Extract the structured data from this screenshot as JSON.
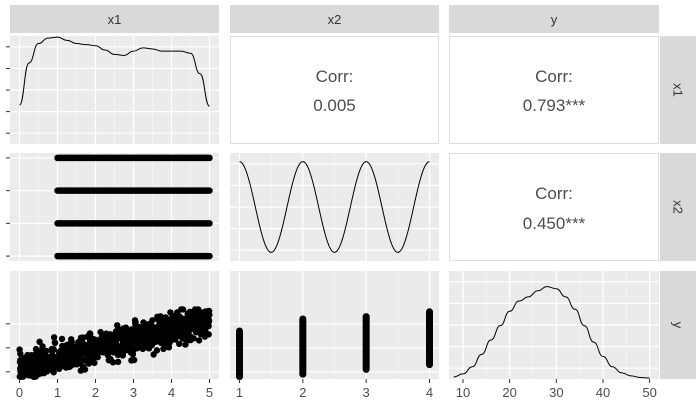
{
  "chart_data": {
    "type": "scatterplot-matrix",
    "variables": [
      "x1",
      "x2",
      "y"
    ],
    "column_strips": [
      "x1",
      "x2",
      "y"
    ],
    "row_strips": [
      "x1",
      "x2",
      "y"
    ],
    "correlations": [
      {
        "row": "x1",
        "col": "x2",
        "label": "Corr:",
        "value": "0.005"
      },
      {
        "row": "x1",
        "col": "y",
        "label": "Corr:",
        "value": "0.793***"
      },
      {
        "row": "x2",
        "col": "y",
        "label": "Corr:",
        "value": "0.450***"
      }
    ],
    "x_ticks": {
      "x1": [
        "0",
        "1",
        "2",
        "3",
        "4",
        "5"
      ],
      "x2": [
        "1",
        "2",
        "3",
        "4"
      ],
      "y": [
        "10",
        "20",
        "30",
        "40",
        "50"
      ]
    },
    "x_ranges": {
      "x1": [
        -0.25,
        5.25
      ],
      "x2": [
        0.85,
        4.15
      ],
      "y": [
        7,
        52
      ]
    },
    "y_ranges": {
      "x1": [
        0,
        1
      ],
      "x2": [
        0.85,
        4.15
      ],
      "y": [
        7,
        52
      ]
    },
    "density_x1": {
      "x": [
        0,
        0.25,
        0.5,
        0.75,
        1.0,
        1.25,
        1.5,
        1.75,
        2.0,
        2.25,
        2.5,
        2.75,
        3.0,
        3.25,
        3.5,
        3.75,
        4.0,
        4.25,
        4.5,
        4.75,
        5.0
      ],
      "y": [
        0.36,
        0.75,
        0.93,
        0.98,
        0.99,
        0.96,
        0.93,
        0.92,
        0.91,
        0.87,
        0.83,
        0.82,
        0.86,
        0.89,
        0.88,
        0.86,
        0.86,
        0.86,
        0.84,
        0.65,
        0.35
      ]
    },
    "x2_levels": [
      1,
      2,
      3,
      4
    ],
    "x2_level_ranges": [
      [
        1,
        5
      ],
      [
        1,
        5
      ],
      [
        1,
        5
      ],
      [
        1,
        5
      ]
    ],
    "density_x2_shape": "periodic bumps peaking at the integer levels 1, 2, 3, 4",
    "scatter_y_vs_x1": {
      "trend": {
        "x": [
          0,
          5
        ],
        "y": [
          11,
          32
        ]
      },
      "spread": 5.5,
      "n_points": 900,
      "y_clip": [
        8,
        36
      ]
    },
    "scatter_y_vs_x2": [
      {
        "x": 1,
        "y_range": [
          8,
          27
        ]
      },
      {
        "x": 2,
        "y_range": [
          9,
          32
        ]
      },
      {
        "x": 3,
        "y_range": [
          11,
          33
        ]
      },
      {
        "x": 4,
        "y_range": [
          13,
          35
        ]
      }
    ],
    "density_y": {
      "x": [
        8,
        10,
        12,
        14,
        16,
        18,
        20,
        22,
        24,
        26,
        28,
        30,
        32,
        34,
        36,
        38,
        40,
        42,
        44,
        46,
        48,
        50
      ],
      "y": [
        0.02,
        0.05,
        0.12,
        0.24,
        0.38,
        0.52,
        0.66,
        0.76,
        0.8,
        0.86,
        0.9,
        0.88,
        0.8,
        0.68,
        0.52,
        0.36,
        0.22,
        0.12,
        0.06,
        0.03,
        0.015,
        0.01
      ]
    },
    "colors": {
      "strip_fill": "#d9d9d9",
      "panel_fill": "#ebebeb",
      "grid_major": "#ffffff",
      "grid_minor": "#f5f5f5",
      "ink": "#000000",
      "corr_text": "#4d4d4d"
    },
    "grid": true
  }
}
